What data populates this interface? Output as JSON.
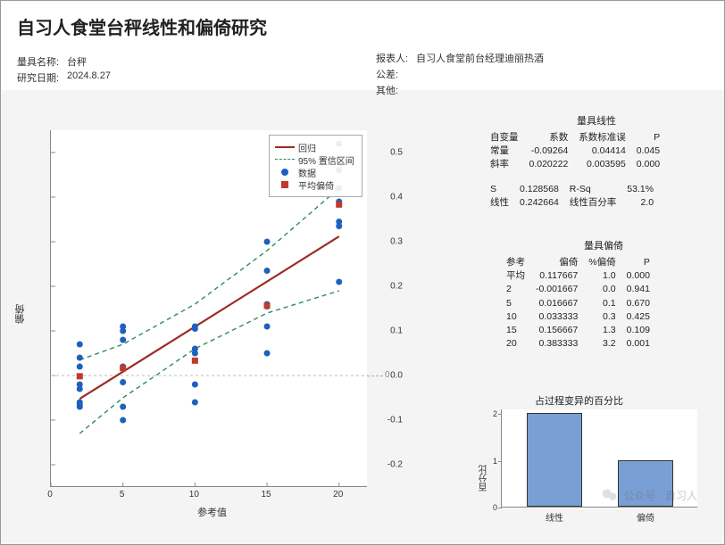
{
  "title": "自习人食堂台秤线性和偏倚研究",
  "meta_left": {
    "name_label": "量具名称:",
    "name_value": "台秤",
    "date_label": "研究日期:",
    "date_value": "2024.8.27"
  },
  "meta_right": {
    "reporter_label": "报表人:",
    "reporter_value": "自习人食堂前台经理迪丽热酒",
    "tolerance_label": "公差:",
    "tolerance_value": "",
    "other_label": "其他:",
    "other_value": ""
  },
  "legend": {
    "regression": "回归",
    "ci": "95% 置信区间",
    "data": "数据",
    "avg_bias": "平均偏倚",
    "color_regression": "#9e2b25",
    "color_ci": "#2e8b57",
    "color_data": "#1f5fbf",
    "color_avg": "#c0392b"
  },
  "scatter": {
    "xlabel": "参考值",
    "ylabel": "偏倚",
    "xlim": [
      0,
      22
    ],
    "ylim": [
      -0.25,
      0.55
    ],
    "xticks": [
      0,
      5,
      10,
      15,
      20
    ],
    "yticks": [
      -0.2,
      -0.1,
      0.0,
      0.1,
      0.2,
      0.3,
      0.4,
      0.5
    ],
    "regression": {
      "slope": 0.020222,
      "intercept": -0.09264
    },
    "ci_upper": [
      [
        2,
        0.035
      ],
      [
        5,
        0.07
      ],
      [
        10,
        0.16
      ],
      [
        15,
        0.28
      ],
      [
        20,
        0.42
      ]
    ],
    "ci_lower": [
      [
        2,
        -0.13
      ],
      [
        5,
        -0.05
      ],
      [
        10,
        0.06
      ],
      [
        15,
        0.14
      ],
      [
        20,
        0.19
      ]
    ],
    "data_points": [
      [
        2,
        0.07
      ],
      [
        2,
        0.04
      ],
      [
        2,
        0.02
      ],
      [
        2,
        -0.02
      ],
      [
        2,
        -0.03
      ],
      [
        2,
        -0.06
      ],
      [
        2,
        -0.065
      ],
      [
        2,
        -0.07
      ],
      [
        5,
        0.1
      ],
      [
        5,
        0.11
      ],
      [
        5,
        0.08
      ],
      [
        5,
        0.02
      ],
      [
        5,
        -0.015
      ],
      [
        5,
        -0.07
      ],
      [
        5,
        -0.1
      ],
      [
        10,
        0.11
      ],
      [
        10,
        0.105
      ],
      [
        10,
        0.05
      ],
      [
        10,
        0.06
      ],
      [
        10,
        -0.02
      ],
      [
        10,
        -0.06
      ],
      [
        15,
        0.3
      ],
      [
        15,
        0.235
      ],
      [
        15,
        0.155
      ],
      [
        15,
        0.16
      ],
      [
        15,
        0.11
      ],
      [
        15,
        0.05
      ],
      [
        20,
        0.52
      ],
      [
        20,
        0.46
      ],
      [
        20,
        0.42
      ],
      [
        20,
        0.39
      ],
      [
        20,
        0.345
      ],
      [
        20,
        0.335
      ],
      [
        20,
        0.21
      ]
    ],
    "avg_points": [
      [
        2,
        -0.001667
      ],
      [
        5,
        0.016667
      ],
      [
        10,
        0.033333
      ],
      [
        15,
        0.156667
      ],
      [
        20,
        0.383333
      ]
    ],
    "zero_label": "0",
    "data_color": "#1f5fbf",
    "avg_color": "#c0392b",
    "reg_color": "#9e2b25",
    "ci_color": "#2e8b57",
    "bg": "#ffffff"
  },
  "linearity_table": {
    "title": "量具线性",
    "headers": [
      "自变量",
      "系数",
      "系数标准误",
      "P"
    ],
    "rows": [
      [
        "常量",
        "-0.09264",
        "0.04414",
        "0.045"
      ],
      [
        "斜率",
        "0.020222",
        "0.003595",
        "0.000"
      ]
    ],
    "stats": [
      [
        "S",
        "0.128568",
        "R-Sq",
        "53.1%"
      ],
      [
        "线性",
        "0.242664",
        "线性百分率",
        "2.0"
      ]
    ]
  },
  "bias_table": {
    "title": "量具偏倚",
    "headers": [
      "参考",
      "偏倚",
      "%偏倚",
      "P"
    ],
    "rows": [
      [
        "平均",
        "0.117667",
        "1.0",
        "0.000"
      ],
      [
        "2",
        "-0.001667",
        "0.0",
        "0.941"
      ],
      [
        "5",
        "0.016667",
        "0.1",
        "0.670"
      ],
      [
        "10",
        "0.033333",
        "0.3",
        "0.425"
      ],
      [
        "15",
        "0.156667",
        "1.3",
        "0.109"
      ],
      [
        "20",
        "0.383333",
        "3.2",
        "0.001"
      ]
    ]
  },
  "barchart": {
    "title": "占过程变异的百分比",
    "ylabel": "百分比",
    "ylim": [
      0,
      2.1
    ],
    "yticks": [
      0,
      1,
      2
    ],
    "bars": [
      {
        "label": "线性",
        "value": 2.0
      },
      {
        "label": "偏倚",
        "value": 1.0
      }
    ],
    "bar_color": "#7a9fd4",
    "bar_border": "#333333",
    "bg": "#ffffff"
  },
  "watermark": "公众号 · 自习人"
}
